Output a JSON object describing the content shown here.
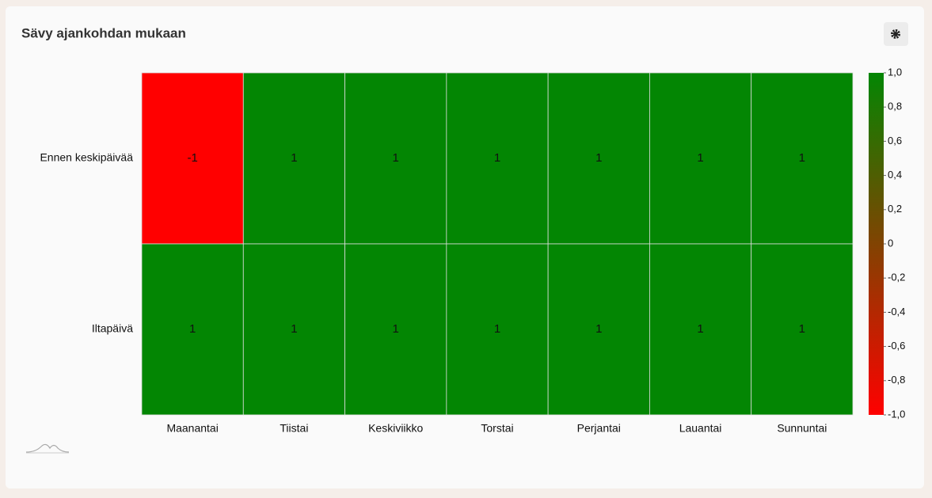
{
  "chart_data": {
    "type": "heatmap",
    "title": "Sävy ajankohdan mukaan",
    "categories": [
      "Maanantai",
      "Tiistai",
      "Keskiviikko",
      "Torstai",
      "Perjantai",
      "Lauantai",
      "Sunnuntai"
    ],
    "rows": [
      "Ennen keskipäivää",
      "Iltapäivä"
    ],
    "values": [
      [
        -1,
        1,
        1,
        1,
        1,
        1,
        1
      ],
      [
        1,
        1,
        1,
        1,
        1,
        1,
        1
      ]
    ],
    "colorscale": [
      "#ff0000",
      "#038603"
    ],
    "zlim": [
      -1,
      1
    ],
    "zticks": [
      {
        "value": 1,
        "label": "1,0"
      },
      {
        "value": 0.8,
        "label": "0,8"
      },
      {
        "value": 0.6,
        "label": "0,6"
      },
      {
        "value": 0.4,
        "label": "0,4"
      },
      {
        "value": 0.2,
        "label": "0,2"
      },
      0,
      {
        "value": -0.2,
        "label": "-0,2"
      },
      {
        "value": -0.4,
        "label": "-0,4"
      },
      {
        "value": -0.6,
        "label": "-0,6"
      },
      {
        "value": -0.8,
        "label": "-0,8"
      },
      {
        "value": -1,
        "label": "-1,0"
      }
    ]
  }
}
